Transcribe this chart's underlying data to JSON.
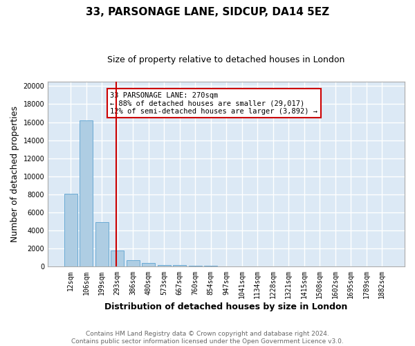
{
  "title": "33, PARSONAGE LANE, SIDCUP, DA14 5EZ",
  "subtitle": "Size of property relative to detached houses in London",
  "xlabel": "Distribution of detached houses by size in London",
  "ylabel": "Number of detached properties",
  "categories": [
    "12sqm",
    "106sqm",
    "199sqm",
    "293sqm",
    "386sqm",
    "480sqm",
    "573sqm",
    "667sqm",
    "760sqm",
    "854sqm",
    "947sqm",
    "1041sqm",
    "1134sqm",
    "1228sqm",
    "1321sqm",
    "1415sqm",
    "1508sqm",
    "1602sqm",
    "1695sqm",
    "1789sqm",
    "1882sqm"
  ],
  "values": [
    8050,
    16200,
    4900,
    1800,
    750,
    380,
    220,
    150,
    100,
    120,
    0,
    0,
    0,
    0,
    0,
    0,
    0,
    0,
    0,
    0,
    0
  ],
  "bar_color": "#aecde3",
  "bar_edge_color": "#6aaad4",
  "vline_x": 2.92,
  "vline_color": "#cc0000",
  "annotation_text": "33 PARSONAGE LANE: 270sqm\n← 88% of detached houses are smaller (29,017)\n12% of semi-detached houses are larger (3,892) →",
  "annotation_box_color": "#ffffff",
  "annotation_box_edge": "#cc0000",
  "footer": "Contains HM Land Registry data © Crown copyright and database right 2024.\nContains public sector information licensed under the Open Government Licence v3.0.",
  "ylim": [
    0,
    20500
  ],
  "yticks": [
    0,
    2000,
    4000,
    6000,
    8000,
    10000,
    12000,
    14000,
    16000,
    18000,
    20000
  ],
  "figure_bg": "#ffffff",
  "plot_bg": "#dce9f5",
  "grid_color": "#ffffff",
  "title_fontsize": 11,
  "subtitle_fontsize": 9,
  "axis_label_fontsize": 9,
  "tick_fontsize": 7,
  "annotation_fontsize": 7.5,
  "footer_fontsize": 6.5
}
